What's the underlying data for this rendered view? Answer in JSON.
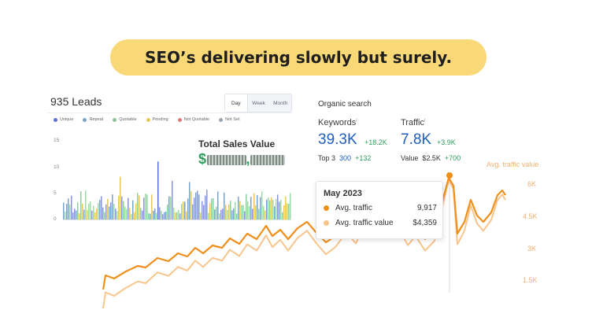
{
  "headline": "SEO’s delivering slowly but surely.",
  "leads": {
    "title": "935 Leads",
    "range_options": [
      "Day",
      "Week",
      "Month"
    ],
    "selected_range": "Day",
    "legend": [
      {
        "label": "Unique",
        "color": "#5b6fd6"
      },
      {
        "label": "Repeat",
        "color": "#7aa3c7"
      },
      {
        "label": "Quotable",
        "color": "#8fbf9a"
      },
      {
        "label": "Pending",
        "color": "#e6c95a"
      },
      {
        "label": "Not Quotable",
        "color": "#e07a7a"
      },
      {
        "label": "Not Set",
        "color": "#9aa5b3"
      }
    ],
    "y_ticks": [
      "15",
      "10",
      "5",
      "0"
    ],
    "sales_label": "Total Sales Value",
    "sales_prefix": "$",
    "sales_separator": ","
  },
  "organic": {
    "title": "Organic search",
    "keywords": {
      "label": "Keywords",
      "info": "i",
      "value": "39.3K",
      "delta": "+18.2K",
      "sub_label": "Top 3",
      "sub_value": "300",
      "sub_delta": "+132"
    },
    "traffic": {
      "label": "Traffic",
      "info": "i",
      "value": "7.8K",
      "delta": "+3.9K",
      "sub_label": "Value",
      "sub_value": "$2.5K",
      "sub_delta": "+700"
    }
  },
  "traffic_chart": {
    "right_axis_title": "Avg. traffic value",
    "right_ticks": [
      "6K",
      "4.5K",
      "3K",
      "1.5K"
    ],
    "line_color": "#f0901c",
    "value_line_color": "#f8c58c"
  },
  "tooltip": {
    "title": "May 2023",
    "rows": [
      {
        "label": "Avg. traffic",
        "value": "9,917",
        "color": "#f0901c"
      },
      {
        "label": "Avg. traffic value",
        "value": "$4,359",
        "color": "#f8c58c"
      }
    ]
  }
}
